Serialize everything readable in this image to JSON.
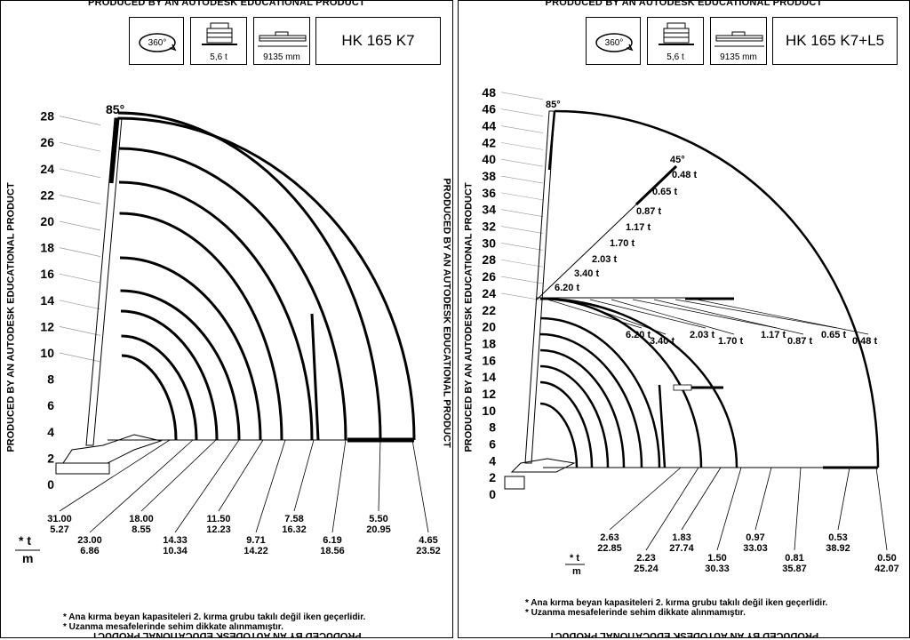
{
  "watermark": "PRODUCED BY AN AUTODESK EDUCATIONAL PRODUCT",
  "panels": [
    {
      "model": "HK 165 K7",
      "rotation_label": "360°",
      "weight_label": "5,6 t",
      "length_label": "9135 mm",
      "angle_label": "85°",
      "y_ticks": [
        "0",
        "2",
        "4",
        "6",
        "8",
        "10",
        "12",
        "14",
        "16",
        "18",
        "20",
        "22",
        "24",
        "26",
        "28"
      ],
      "legend": {
        "t": "* t",
        "m": "m"
      },
      "load_points": [
        {
          "t": "31.00",
          "m": "5.27"
        },
        {
          "t": "23.00",
          "m": "6.86"
        },
        {
          "t": "18.00",
          "m": "8.55"
        },
        {
          "t": "14.33",
          "m": "10.34"
        },
        {
          "t": "11.50",
          "m": "12.23"
        },
        {
          "t": "9.71",
          "m": "14.22"
        },
        {
          "t": "7.58",
          "m": "16.32"
        },
        {
          "t": "6.19",
          "m": "18.56"
        },
        {
          "t": "5.50",
          "m": "20.95"
        },
        {
          "t": "4.65",
          "m": "23.52"
        }
      ],
      "footnotes": [
        "* Ana kırma beyan kapasiteleri 2. kırma grubu takılı değil iken geçerlidir.",
        "* Uzanma mesafelerinde sehim dikkate alınmamıştır."
      ]
    },
    {
      "model": "HK 165 K7+L5",
      "rotation_label": "360°",
      "weight_label": "5,6 t",
      "length_label": "9135 mm",
      "angle_label": "85°",
      "angle2_label": "45°",
      "y_ticks": [
        "0",
        "2",
        "4",
        "6",
        "8",
        "10",
        "12",
        "14",
        "16",
        "18",
        "20",
        "22",
        "24",
        "26",
        "28",
        "30",
        "32",
        "34",
        "36",
        "38",
        "40",
        "42",
        "44",
        "46",
        "48"
      ],
      "legend": {
        "t": "* t",
        "m": "m"
      },
      "jib_loads_45": [
        "6.20 t",
        "3.40 t",
        "2.03 t",
        "1.70 t",
        "1.17 t",
        "0.87 t",
        "0.65 t",
        "0.48 t"
      ],
      "jib_loads_h": [
        "6.20 t",
        "3.40 t",
        "2.03 t",
        "1.70 t",
        "1.17 t",
        "0.87 t",
        "0.65 t",
        "0.48 t"
      ],
      "load_points": [
        {
          "t": "2.63",
          "m": "22.85"
        },
        {
          "t": "2.23",
          "m": "25.24"
        },
        {
          "t": "1.83",
          "m": "27.74"
        },
        {
          "t": "1.50",
          "m": "30.33"
        },
        {
          "t": "0.97",
          "m": "33.03"
        },
        {
          "t": "0.81",
          "m": "35.87"
        },
        {
          "t": "0.53",
          "m": "38.92"
        },
        {
          "t": "0.50",
          "m": "42.07"
        }
      ],
      "footnotes": [
        "* Ana kırma beyan kapasiteleri 2. kırma grubu takılı değil iken geçerlidir.",
        "* Uzanma mesafelerinde sehim dikkate alınmamıştır."
      ]
    }
  ]
}
